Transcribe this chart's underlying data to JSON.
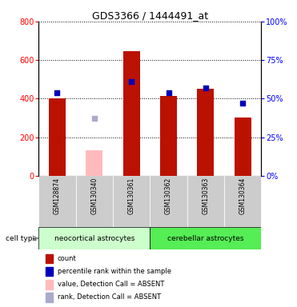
{
  "title": "GDS3366 / 1444491_at",
  "sample_names": [
    "GSM128874",
    "GSM130340",
    "GSM130361",
    "GSM130362",
    "GSM130363",
    "GSM130364"
  ],
  "count_values": [
    400,
    null,
    645,
    415,
    453,
    300
  ],
  "percentile_values": [
    54,
    null,
    61,
    54,
    57,
    47
  ],
  "absent_count": [
    null,
    130,
    null,
    null,
    null,
    null
  ],
  "absent_rank": [
    null,
    37,
    null,
    null,
    null,
    null
  ],
  "ylim_left": [
    0,
    800
  ],
  "ylim_right": [
    0,
    100
  ],
  "y_ticks_left": [
    0,
    200,
    400,
    600,
    800
  ],
  "y_ticks_right": [
    0,
    25,
    50,
    75,
    100
  ],
  "bar_color_red": "#bb1100",
  "bar_color_pink": "#ffbbbb",
  "square_color_blue": "#0000bb",
  "square_color_lightblue": "#aaaacc",
  "bg_color_neo": "#ccffcc",
  "bg_color_cer": "#55ee55",
  "sample_bg": "#cccccc",
  "chart_bg": "#ffffff",
  "group_label_neo": "neocortical astrocytes",
  "group_label_cer": "cerebellar astrocytes",
  "legend_items": [
    {
      "color": "#bb1100",
      "label": "count"
    },
    {
      "color": "#0000bb",
      "label": "percentile rank within the sample"
    },
    {
      "color": "#ffbbbb",
      "label": "value, Detection Call = ABSENT"
    },
    {
      "color": "#aaaacc",
      "label": "rank, Detection Call = ABSENT"
    }
  ]
}
